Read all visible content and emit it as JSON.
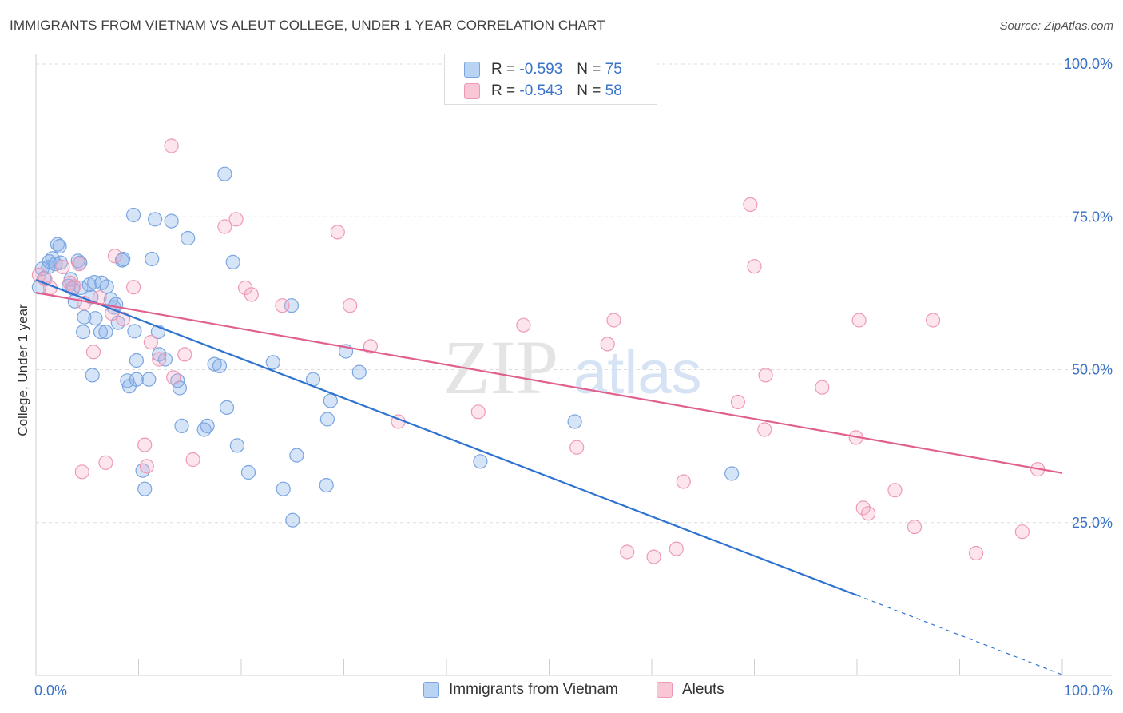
{
  "header": {
    "title": "IMMIGRANTS FROM VIETNAM VS ALEUT COLLEGE, UNDER 1 YEAR CORRELATION CHART",
    "source": "Source: ZipAtlas.com"
  },
  "legend": {
    "r_label": "R =",
    "n_label": "N =",
    "rows": [
      {
        "r": "-0.593",
        "n": "75",
        "fill": "#b9d3f5",
        "stroke": "#7aa5e0"
      },
      {
        "r": "-0.543",
        "n": "58",
        "fill": "#f9c6d6",
        "stroke": "#ee9ab5"
      }
    ]
  },
  "bottom_legend": {
    "items": [
      {
        "label": "Immigrants from Vietnam",
        "fill": "#b9d3f5",
        "stroke": "#7aa5e0"
      },
      {
        "label": "Aleuts",
        "fill": "#f9c6d6",
        "stroke": "#ee9ab5"
      }
    ]
  },
  "watermark": {
    "zip": "ZIP",
    "atlas": "atlas"
  },
  "colors": {
    "blue_point": "#7aa5e0",
    "blue_fill": "rgba(137,178,235,0.35)",
    "blue_line": "#2f73d0",
    "pink_point": "#ee9ab5",
    "pink_fill": "rgba(244,170,195,0.30)",
    "pink_line": "#e0608e",
    "axis_label": "#3a73c8",
    "grid": "#dcdcdc"
  },
  "chart_data": {
    "type": "scatter",
    "ylabel": "College, Under 1 year",
    "xlabel": "",
    "xlim": [
      0,
      100
    ],
    "ylim": [
      0,
      100
    ],
    "x_tick_labels": [
      {
        "value": 0,
        "label": "0.0%"
      },
      {
        "value": 100,
        "label": "100.0%"
      }
    ],
    "y_tick_labels": [
      {
        "value": 100,
        "label": "100.0%"
      },
      {
        "value": 75,
        "label": "75.0%"
      },
      {
        "value": 50,
        "label": "50.0%"
      },
      {
        "value": 25,
        "label": "25.0%"
      }
    ],
    "grid": true,
    "legend_position": "top-center",
    "series": [
      {
        "name": "Immigrants from Vietnam",
        "points": [
          [
            0.3,
            63.5
          ],
          [
            0.6,
            66.5
          ],
          [
            0.8,
            65
          ],
          [
            1.2,
            66.8
          ],
          [
            1.3,
            67.7
          ],
          [
            1.6,
            68.2
          ],
          [
            1.9,
            67.3
          ],
          [
            2.1,
            70.5
          ],
          [
            2.3,
            70.2
          ],
          [
            2.4,
            67.5
          ],
          [
            3.2,
            63.7
          ],
          [
            3.4,
            64.8
          ],
          [
            3.6,
            63.3
          ],
          [
            3.8,
            61.2
          ],
          [
            4.1,
            67.8
          ],
          [
            4.3,
            67.5
          ],
          [
            4.4,
            63.4
          ],
          [
            4.6,
            56.2
          ],
          [
            4.7,
            58.6
          ],
          [
            5.4,
            61.9
          ],
          [
            5.2,
            63.9
          ],
          [
            5.7,
            64.3
          ],
          [
            5.5,
            49.1
          ],
          [
            5.8,
            58.4
          ],
          [
            6.3,
            56.2
          ],
          [
            6.4,
            64.2
          ],
          [
            6.8,
            56.2
          ],
          [
            6.9,
            63.6
          ],
          [
            7.3,
            61.5
          ],
          [
            7.6,
            60.2
          ],
          [
            7.8,
            60.7
          ],
          [
            8.0,
            57.7
          ],
          [
            8.4,
            67.9
          ],
          [
            8.5,
            68.1
          ],
          [
            8.9,
            48.2
          ],
          [
            9.1,
            47.3
          ],
          [
            9.5,
            75.3
          ],
          [
            9.6,
            56.3
          ],
          [
            9.8,
            51.5
          ],
          [
            9.8,
            48.4
          ],
          [
            10.4,
            33.5
          ],
          [
            10.6,
            30.5
          ],
          [
            11.0,
            48.4
          ],
          [
            11.3,
            68.1
          ],
          [
            11.6,
            74.6
          ],
          [
            11.9,
            56.2
          ],
          [
            12.0,
            52.5
          ],
          [
            12.6,
            51.7
          ],
          [
            13.2,
            74.3
          ],
          [
            13.8,
            48.2
          ],
          [
            14.0,
            47.0
          ],
          [
            14.2,
            40.8
          ],
          [
            14.8,
            71.5
          ],
          [
            16.4,
            40.2
          ],
          [
            16.7,
            40.8
          ],
          [
            17.4,
            50.9
          ],
          [
            17.9,
            50.6
          ],
          [
            18.4,
            82.0
          ],
          [
            18.6,
            43.8
          ],
          [
            19.2,
            67.6
          ],
          [
            19.6,
            37.6
          ],
          [
            20.7,
            33.2
          ],
          [
            23.1,
            51.2
          ],
          [
            24.1,
            30.5
          ],
          [
            24.9,
            60.5
          ],
          [
            25.0,
            25.4
          ],
          [
            25.4,
            36.0
          ],
          [
            27.0,
            48.4
          ],
          [
            28.3,
            31.1
          ],
          [
            28.4,
            41.9
          ],
          [
            28.7,
            44.9
          ],
          [
            30.2,
            53.0
          ],
          [
            31.5,
            49.6
          ],
          [
            43.3,
            35.0
          ],
          [
            52.5,
            41.5
          ],
          [
            67.8,
            33.0
          ]
        ]
      },
      {
        "name": "Aleuts",
        "points": [
          [
            0.3,
            65.5
          ],
          [
            0.9,
            64.8
          ],
          [
            1.4,
            63.4
          ],
          [
            2.6,
            66.8
          ],
          [
            3.3,
            64.2
          ],
          [
            3.7,
            63.6
          ],
          [
            4.2,
            67.3
          ],
          [
            4.5,
            33.3
          ],
          [
            4.7,
            60.9
          ],
          [
            5.6,
            52.9
          ],
          [
            6.2,
            61.8
          ],
          [
            6.8,
            34.8
          ],
          [
            7.4,
            59.2
          ],
          [
            7.7,
            68.6
          ],
          [
            8.5,
            58.3
          ],
          [
            9.5,
            63.5
          ],
          [
            10.6,
            37.7
          ],
          [
            10.8,
            34.2
          ],
          [
            11.2,
            54.5
          ],
          [
            12.0,
            51.7
          ],
          [
            13.2,
            86.6
          ],
          [
            13.4,
            48.7
          ],
          [
            14.5,
            52.5
          ],
          [
            15.3,
            35.3
          ],
          [
            18.4,
            73.4
          ],
          [
            19.5,
            74.6
          ],
          [
            20.4,
            63.4
          ],
          [
            21.0,
            62.3
          ],
          [
            24.0,
            60.5
          ],
          [
            29.4,
            72.5
          ],
          [
            30.6,
            60.5
          ],
          [
            32.6,
            53.8
          ],
          [
            35.3,
            41.5
          ],
          [
            43.1,
            43.1
          ],
          [
            47.5,
            57.3
          ],
          [
            52.7,
            37.3
          ],
          [
            55.7,
            54.2
          ],
          [
            56.3,
            58.1
          ],
          [
            57.6,
            20.2
          ],
          [
            60.2,
            19.4
          ],
          [
            62.4,
            20.7
          ],
          [
            63.1,
            31.7
          ],
          [
            68.4,
            44.7
          ],
          [
            69.6,
            77.0
          ],
          [
            70.0,
            66.9
          ],
          [
            71.0,
            40.2
          ],
          [
            71.1,
            49.1
          ],
          [
            76.6,
            47.1
          ],
          [
            79.9,
            38.9
          ],
          [
            80.2,
            58.1
          ],
          [
            80.6,
            27.4
          ],
          [
            81.1,
            26.5
          ],
          [
            83.7,
            30.3
          ],
          [
            85.6,
            24.3
          ],
          [
            87.4,
            58.1
          ],
          [
            91.6,
            20.0
          ],
          [
            96.1,
            23.5
          ],
          [
            97.6,
            33.7
          ]
        ]
      }
    ],
    "trend_lines": [
      {
        "series": "Immigrants from Vietnam",
        "from": [
          0,
          64.7
        ],
        "to": [
          80.0,
          13.1
        ],
        "dashed_to": [
          100,
          0.1
        ]
      },
      {
        "series": "Aleuts",
        "from": [
          0,
          62.6
        ],
        "to": [
          100,
          33.1
        ]
      }
    ]
  }
}
